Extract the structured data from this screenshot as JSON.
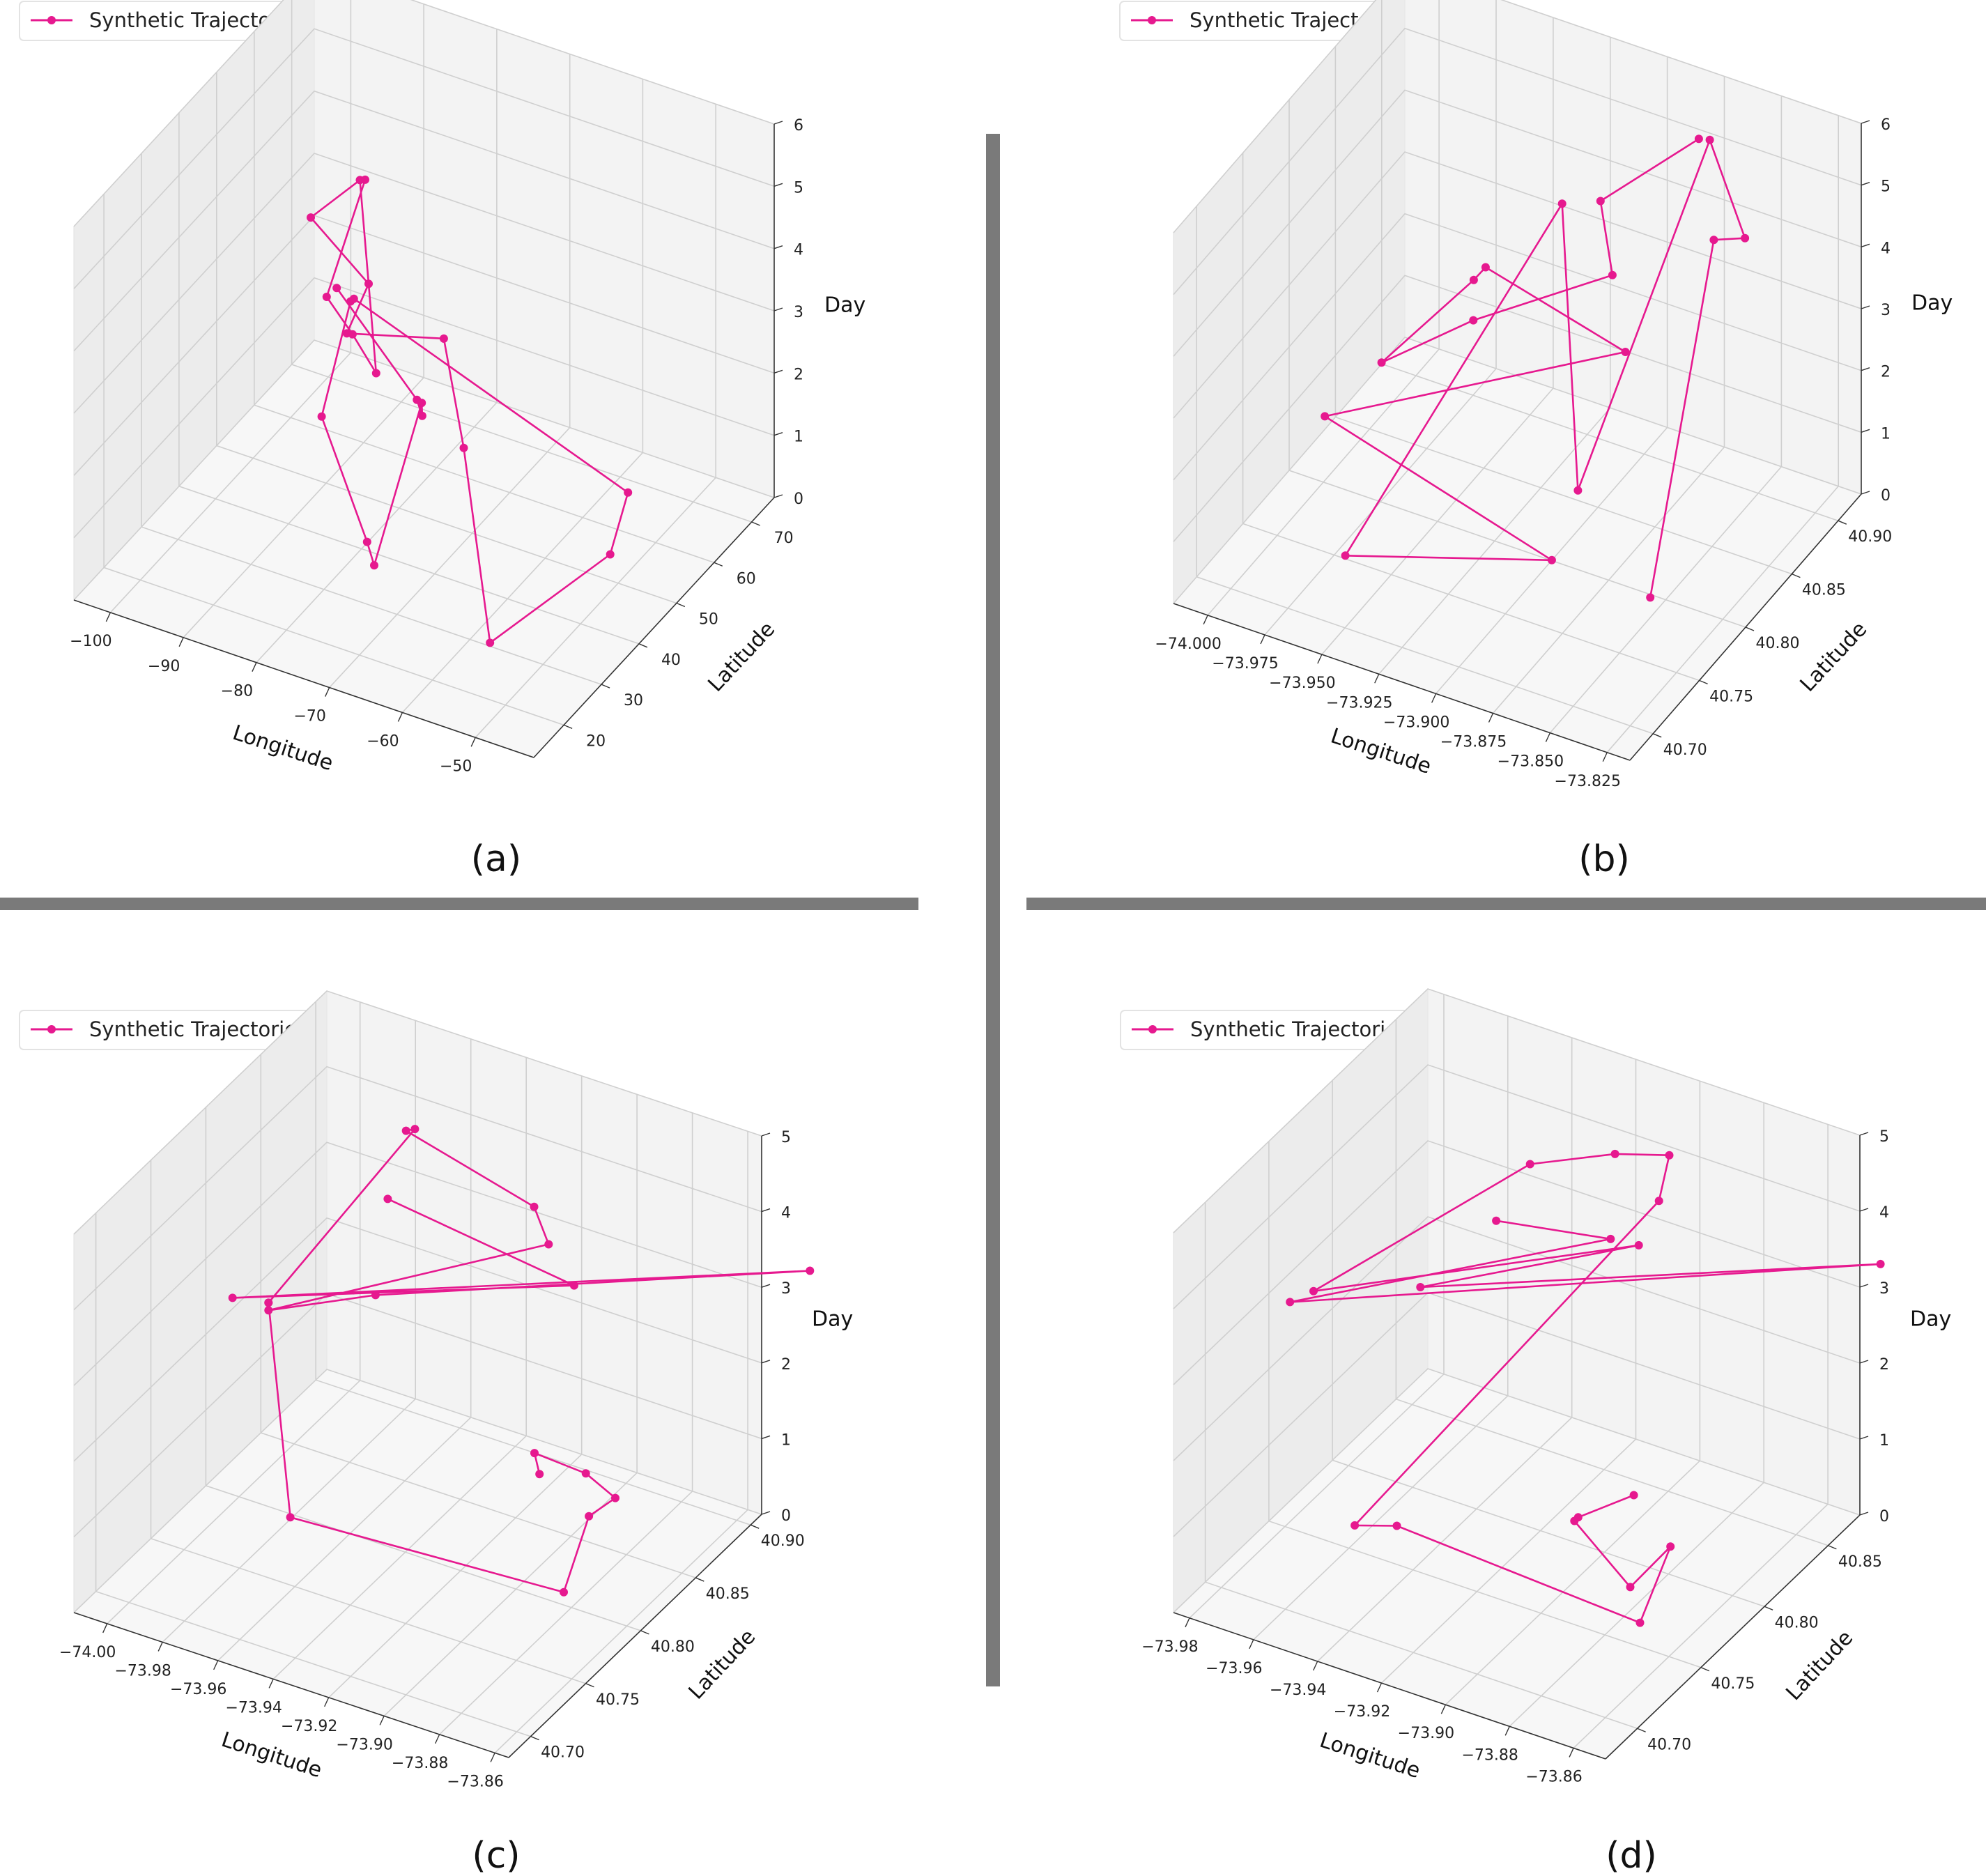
{
  "colors": {
    "trajectory": "#e6198f",
    "divider": "#7a7a7a",
    "pane_left": "#ececec",
    "pane_right": "#f3f3f3",
    "pane_floor": "#f7f7f7",
    "grid": "#cfcfcf"
  },
  "chart_data": [
    {
      "type": "line",
      "panel_label": "(a)",
      "legend": "Synthetic Trajectories",
      "xlabel": "Longitude",
      "ylabel": "Latitude",
      "zlabel": "Day",
      "xlim": [
        -105,
        -42
      ],
      "ylim": [
        12,
        76
      ],
      "zlim": [
        0,
        6
      ],
      "xticks": [
        -100,
        -90,
        -80,
        -70,
        -60,
        -50
      ],
      "xtick_labels": [
        "−100",
        "−90",
        "−80",
        "−70",
        "−60",
        "−50"
      ],
      "yticks": [
        20,
        30,
        40,
        50,
        60,
        70
      ],
      "ytick_labels": [
        "20",
        "30",
        "40",
        "50",
        "60",
        "70"
      ],
      "zticks": [
        0,
        1,
        2,
        3,
        4,
        5,
        6
      ],
      "ztick_labels": [
        "0",
        "1",
        "2",
        "3",
        "4",
        "5",
        "6"
      ],
      "points": [
        [
          -92.1,
          56.9,
          2.6
        ],
        [
          -73.6,
          42.3,
          2.5
        ],
        [
          -72.1,
          40.8,
          2.4
        ],
        [
          -73.4,
          43.2,
          2.4
        ],
        [
          -74.1,
          31.9,
          0.5
        ],
        [
          -75.9,
          33.5,
          0.7
        ],
        [
          -81.3,
          31.9,
          2.6
        ],
        [
          -79.2,
          35.5,
          4.3
        ],
        [
          -79.1,
          36.2,
          4.3
        ],
        [
          -52.3,
          57.1,
          0.9
        ],
        [
          -50.0,
          47.9,
          0.6
        ],
        [
          -53.4,
          22.5,
          0.7
        ],
        [
          -64.1,
          36.3,
          2.5
        ],
        [
          -69.5,
          41.5,
          3.7
        ],
        [
          -79.5,
          35.1,
          3.8
        ],
        [
          -81.4,
          44.6,
          3.9
        ],
        [
          -92.0,
          49.8,
          4.2
        ],
        [
          -86.3,
          51.8,
          4.9
        ],
        [
          -79.8,
          43.5,
          2.6
        ],
        [
          -85.4,
          48.1,
          2.7
        ],
        [
          -87.5,
          45.3,
          3.4
        ],
        [
          -79.2,
          39.4,
          6.0
        ]
      ]
    },
    {
      "type": "line",
      "panel_label": "(b)",
      "legend": "Synthetic Trajectories",
      "xlabel": "Longitude",
      "ylabel": "Latitude",
      "zlabel": "Day",
      "xlim": [
        -74.015,
        -73.815
      ],
      "ylim": [
        40.675,
        40.925
      ],
      "zlim": [
        0,
        6
      ],
      "xticks": [
        -74.0,
        -73.975,
        -73.95,
        -73.925,
        -73.9,
        -73.875,
        -73.85,
        -73.825
      ],
      "xtick_labels": [
        "−74.000",
        "−73.975",
        "−73.950",
        "−73.925",
        "−73.900",
        "−73.875",
        "−73.850",
        "−73.825"
      ],
      "yticks": [
        40.7,
        40.75,
        40.8,
        40.85,
        40.9
      ],
      "ytick_labels": [
        "40.70",
        "40.75",
        "40.80",
        "40.85",
        "40.90"
      ],
      "zticks": [
        0,
        1,
        2,
        3,
        4,
        5,
        6
      ],
      "ztick_labels": [
        "0",
        "1",
        "2",
        "3",
        "4",
        "5",
        "6"
      ],
      "points": [
        [
          -73.887,
          40.927,
          4.8
        ],
        [
          -73.911,
          40.88,
          4.3
        ],
        [
          -73.907,
          40.883,
          3.1
        ],
        [
          -73.957,
          40.856,
          2.2
        ],
        [
          -73.981,
          40.816,
          1.9
        ],
        [
          -73.956,
          40.854,
          2.9
        ],
        [
          -73.963,
          40.884,
          2.5
        ],
        [
          -73.862,
          40.786,
          4.1
        ],
        [
          -73.988,
          40.772,
          1.7
        ],
        [
          -73.891,
          40.778,
          0.5
        ],
        [
          -73.962,
          40.73,
          0.5
        ],
        [
          -73.925,
          40.873,
          4.2
        ],
        [
          -73.899,
          40.826,
          0.7
        ],
        [
          -73.883,
          40.929,
          4.8
        ],
        [
          -73.855,
          40.898,
          4.1
        ],
        [
          -73.865,
          40.889,
          4.1
        ],
        [
          -73.845,
          40.771,
          0.6
        ]
      ]
    },
    {
      "type": "line",
      "panel_label": "(c)",
      "legend": "Synthetic Trajectories",
      "xlabel": "Longitude",
      "ylabel": "Latitude",
      "zlabel": "Day",
      "xlim": [
        -74.012,
        -73.855
      ],
      "ylim": [
        40.68,
        40.91
      ],
      "zlim": [
        0,
        5
      ],
      "xticks": [
        -74.0,
        -73.98,
        -73.96,
        -73.94,
        -73.92,
        -73.9,
        -73.88,
        -73.86
      ],
      "xtick_labels": [
        "−74.00",
        "−73.98",
        "−73.96",
        "−73.94",
        "−73.92",
        "−73.90",
        "−73.88",
        "−73.86"
      ],
      "yticks": [
        40.7,
        40.75,
        40.8,
        40.85,
        40.9
      ],
      "ytick_labels": [
        "40.70",
        "40.75",
        "40.80",
        "40.85",
        "40.90"
      ],
      "zticks": [
        0,
        1,
        2,
        3,
        4,
        5
      ],
      "ztick_labels": [
        "0",
        "1",
        "2",
        "3",
        "4",
        "5"
      ],
      "points": [
        [
          -73.911,
          40.849,
          0.7
        ],
        [
          -73.914,
          40.852,
          0.9
        ],
        [
          -73.903,
          40.871,
          0.5
        ],
        [
          -73.884,
          40.85,
          0.7
        ],
        [
          -73.886,
          40.831,
          0.7
        ],
        [
          -73.88,
          40.793,
          0.3
        ],
        [
          -73.97,
          40.771,
          0.5
        ],
        [
          -73.985,
          40.789,
          2.9
        ],
        [
          -73.985,
          40.789,
          2.9
        ],
        [
          -73.952,
          40.839,
          4.9
        ],
        [
          -73.956,
          40.841,
          4.8
        ],
        [
          -73.93,
          40.892,
          3.4
        ],
        [
          -73.922,
          40.885,
          3.1
        ],
        [
          -73.985,
          40.789,
          2.8
        ],
        [
          -73.969,
          40.846,
          2.4
        ],
        [
          -73.834,
          40.901,
          3.6
        ],
        [
          -73.996,
          40.784,
          2.9
        ],
        [
          -73.91,
          40.878,
          2.8
        ],
        [
          -73.963,
          40.842,
          3.8
        ]
      ]
    },
    {
      "type": "line",
      "panel_label": "(d)",
      "legend": "Synthetic Trajectories",
      "xlabel": "Longitude",
      "ylabel": "Latitude",
      "zlabel": "Day",
      "xlim": [
        -73.985,
        -73.85
      ],
      "ylim": [
        40.675,
        40.875
      ],
      "zlim": [
        0,
        5
      ],
      "xticks": [
        -73.98,
        -73.96,
        -73.94,
        -73.92,
        -73.9,
        -73.88,
        -73.86
      ],
      "xtick_labels": [
        "−73.98",
        "−73.96",
        "−73.94",
        "−73.92",
        "−73.90",
        "−73.88",
        "−73.86"
      ],
      "yticks": [
        40.7,
        40.75,
        40.8,
        40.85
      ],
      "ytick_labels": [
        "40.70",
        "40.75",
        "40.80",
        "40.85"
      ],
      "zticks": [
        0,
        1,
        2,
        3,
        4,
        5
      ],
      "ztick_labels": [
        "0",
        "1",
        "2",
        "3",
        "4",
        "5"
      ],
      "points": [
        [
          -73.896,
          40.813,
          0.6
        ],
        [
          -73.909,
          40.802,
          0.3
        ],
        [
          -73.909,
          40.799,
          0.3
        ],
        [
          -73.882,
          40.775,
          0.2
        ],
        [
          -73.877,
          40.794,
          0.5
        ],
        [
          -73.873,
          40.76,
          0.1
        ],
        [
          -73.947,
          40.755,
          0.4
        ],
        [
          -73.955,
          40.742,
          0.5
        ],
        [
          -73.908,
          40.863,
          3.5
        ],
        [
          -73.902,
          40.856,
          4.3
        ],
        [
          -73.913,
          40.841,
          4.4
        ],
        [
          -73.932,
          40.822,
          4.3
        ],
        [
          -73.977,
          40.765,
          2.9
        ],
        [
          -73.902,
          40.832,
          3.5
        ],
        [
          -73.946,
          40.771,
          3.3
        ],
        [
          -73.838,
          40.861,
          3.7
        ],
        [
          -73.978,
          40.749,
          3.0
        ],
        [
          -73.91,
          40.83,
          3.5
        ],
        [
          -73.939,
          40.813,
          3.6
        ]
      ]
    }
  ]
}
